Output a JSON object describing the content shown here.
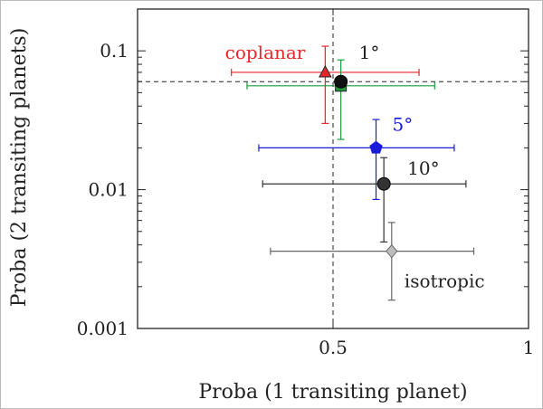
{
  "chart_data": {
    "type": "scatter",
    "xlabel": "Proba (1 transiting planet)",
    "ylabel": "Proba (2 transiting planets)",
    "xlim": [
      0,
      1
    ],
    "ylim": [
      0.001,
      0.2
    ],
    "y_scale": "log",
    "x_ticks": [
      {
        "value": 0.5,
        "label": "0.5"
      },
      {
        "value": 1,
        "label": "1"
      }
    ],
    "y_ticks": [
      {
        "value": 0.1,
        "label": "0.1"
      },
      {
        "value": 0.01,
        "label": "0.01"
      },
      {
        "value": 0.001,
        "label": "0.001"
      }
    ],
    "reference_lines": [
      {
        "orientation": "vertical",
        "value": 0.5,
        "style": "dashed"
      },
      {
        "orientation": "horizontal",
        "value": 0.06,
        "style": "dashed"
      }
    ],
    "series": [
      {
        "name": "coplanar",
        "color": "#e8262b",
        "marker": "triangle",
        "x": 0.48,
        "y": 0.07,
        "xerr": [
          0.24,
          0.72
        ],
        "yerr": [
          0.03,
          0.108
        ]
      },
      {
        "name": "",
        "color": "#1e9a3c",
        "marker": "square",
        "x": 0.52,
        "y": 0.056,
        "xerr": [
          0.28,
          0.76
        ],
        "yerr": [
          0.023,
          0.086
        ]
      },
      {
        "name": "1°",
        "color": "#111111",
        "marker": "circle",
        "x": 0.52,
        "y": 0.06,
        "xerr": null,
        "yerr": null
      },
      {
        "name": "5°",
        "color": "#1a1adb",
        "marker": "pentagon",
        "x": 0.61,
        "y": 0.02,
        "xerr": [
          0.31,
          0.81
        ],
        "yerr": [
          0.0085,
          0.032
        ]
      },
      {
        "name": "10°",
        "color": "#333333",
        "marker": "circle",
        "x": 0.63,
        "y": 0.011,
        "xerr": [
          0.32,
          0.84
        ],
        "yerr": [
          0.0042,
          0.017
        ]
      },
      {
        "name": "isotropic",
        "color": "#666666",
        "marker": "diamond",
        "x": 0.65,
        "y": 0.0036,
        "xerr": [
          0.34,
          0.86
        ],
        "yerr": [
          0.0016,
          0.0058
        ]
      }
    ]
  }
}
